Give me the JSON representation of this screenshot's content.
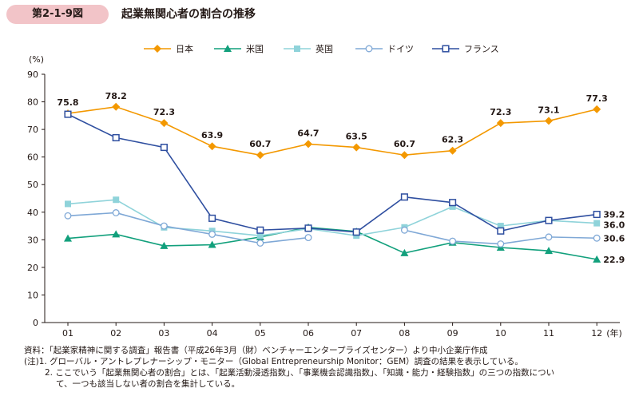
{
  "header": {
    "figure_no": "第2-1-9図",
    "title": "起業無関心者の割合の推移"
  },
  "chart_data": {
    "type": "line",
    "title": "起業無関心者の割合の推移",
    "ylabel": "(%)",
    "xlabel": "(年)",
    "categories": [
      "01",
      "02",
      "03",
      "04",
      "05",
      "06",
      "07",
      "08",
      "09",
      "10",
      "11",
      "12"
    ],
    "ylim": [
      0,
      90
    ],
    "yticks": [
      0,
      10,
      20,
      30,
      40,
      50,
      60,
      70,
      80,
      90
    ],
    "series": [
      {
        "name": "日本",
        "color": "#f39800",
        "marker": "diamond",
        "values": [
          75.8,
          78.2,
          72.3,
          63.9,
          60.7,
          64.7,
          63.5,
          60.7,
          62.3,
          72.3,
          73.1,
          77.3
        ],
        "labels": [
          "75.8",
          "78.2",
          "72.3",
          "63.9",
          "60.7",
          "64.7",
          "63.5",
          "60.7",
          "62.3",
          "72.3",
          "73.1",
          "77.3"
        ]
      },
      {
        "name": "米国",
        "color": "#12a07c",
        "marker": "triangle",
        "values": [
          30.5,
          32.0,
          27.8,
          28.2,
          31.0,
          34.5,
          33.0,
          25.2,
          29.0,
          27.2,
          26.0,
          22.9
        ],
        "end_label": "22.9"
      },
      {
        "name": "英国",
        "color": "#8fd3da",
        "marker": "square",
        "values": [
          43.0,
          44.5,
          34.5,
          33.2,
          31.5,
          34.0,
          31.5,
          34.5,
          42.0,
          35.0,
          37.0,
          36.0
        ],
        "end_label": "36.0"
      },
      {
        "name": "ドイツ",
        "color": "#7fa8d6",
        "marker": "circle",
        "values": [
          38.7,
          39.8,
          35.0,
          32.0,
          28.8,
          30.8,
          null,
          33.5,
          29.5,
          28.5,
          31.0,
          30.6
        ],
        "end_label": "30.6"
      },
      {
        "name": "フランス",
        "color": "#2f4fa0",
        "marker": "open-square",
        "values": [
          75.5,
          67.0,
          63.5,
          37.8,
          33.5,
          34.2,
          32.8,
          45.5,
          43.5,
          33.2,
          37.0,
          39.2
        ],
        "end_label": "39.2"
      }
    ]
  },
  "notes": [
    "資料：「起業家精神に関する調査」報告書（平成26年3月（財）ベンチャーエンタープライズセンター）より中小企業庁作成",
    "(注)1. グローバル・アントレプレナーシップ・モニター（Global Entrepreneurship Monitor：GEM）調査の結果を表示している。",
    "2. ここでいう「起業無関心者の割合」とは、「起業活動浸透指数」、「事業機会認識指数」、「知識・能力・経験指数」の三つの指数につい",
    "て、一つも該当しない者の割合を集計している。"
  ]
}
